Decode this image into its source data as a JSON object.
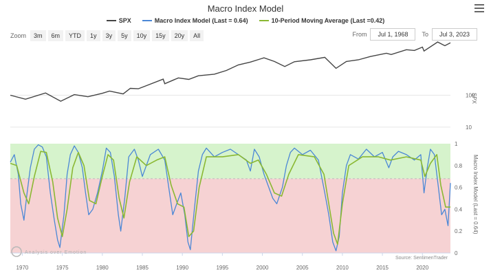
{
  "title": "Macro Index Model",
  "legend": [
    {
      "label": "SPX",
      "color": "#444444"
    },
    {
      "label": "Macro Index Model (Last = 0.64)",
      "color": "#4a87d6"
    },
    {
      "label": "10-Period Moving Average (Last =0.42)",
      "color": "#8ab832"
    }
  ],
  "zoom": {
    "label": "Zoom",
    "buttons": [
      "3m",
      "6m",
      "YTD",
      "1y",
      "3y",
      "5y",
      "10y",
      "15y",
      "20y",
      "All"
    ]
  },
  "range": {
    "from_label": "From",
    "from_value": "Jul 1, 1968",
    "to_label": "To",
    "to_value": "Jul 3, 2023"
  },
  "credit": "Source: SentimenTrader",
  "watermark": "Analysis over Emotion",
  "colors": {
    "green_zone": "#d6f3cc",
    "red_zone": "#f6d2d3",
    "threshold_line": "#bbbbbb"
  },
  "chart_data": [
    {
      "type": "line",
      "name_on_chart": "SPX",
      "y_scale": "log",
      "ylim": [
        7,
        4500
      ],
      "xlim": [
        1968.5,
        2023.5
      ],
      "y_ticks": [
        "100",
        "10"
      ],
      "ylabel": "SPX",
      "series": [
        {
          "name": "SPX",
          "x": [
            1968.5,
            1970.4,
            1972.9,
            1974.8,
            1976.5,
            1978.2,
            1980.0,
            1980.9,
            1982.6,
            1983.5,
            1984.5,
            1985.5,
            1987.6,
            1987.8,
            1989.5,
            1990.8,
            1992.0,
            1994.0,
            1995.5,
            1997.0,
            1998.5,
            2000.2,
            2001.5,
            2002.8,
            2004.0,
            2006.0,
            2007.8,
            2009.2,
            2010.5,
            2012.0,
            2013.5,
            2015.5,
            2016.1,
            2018.0,
            2019.0,
            2020.0,
            2020.2,
            2021.9,
            2022.8,
            2023.5
          ],
          "values": [
            100,
            75,
            118,
            65,
            105,
            90,
            115,
            135,
            110,
            165,
            160,
            200,
            320,
            230,
            350,
            315,
            410,
            460,
            600,
            900,
            1100,
            1500,
            1150,
            800,
            1130,
            1300,
            1550,
            700,
            1150,
            1300,
            1650,
            2080,
            1900,
            2700,
            2550,
            3250,
            2450,
            4700,
            3600,
            4450
          ]
        }
      ]
    },
    {
      "type": "line",
      "xlim": [
        1968.5,
        2023.5
      ],
      "ylim": [
        0,
        1
      ],
      "y_ticks": [
        "0",
        "0.2",
        "0.4",
        "0.6",
        "0.8",
        "1"
      ],
      "x_ticks": [
        "1970",
        "1975",
        "1980",
        "1985",
        "1990",
        "1995",
        "2000",
        "2005",
        "2010",
        "2015",
        "2020"
      ],
      "ylabel": "Macro Index Model (Last = 0.64)",
      "zones": {
        "green": [
          0.68,
          1.0
        ],
        "red": [
          0,
          0.68
        ],
        "threshold": 0.68
      },
      "series": [
        {
          "name": "Macro Index Model (Last = 0.64)",
          "x": [
            1968.5,
            1969.0,
            1969.5,
            1969.8,
            1970.2,
            1970.6,
            1971.0,
            1971.5,
            1972.0,
            1972.5,
            1973.0,
            1973.5,
            1974.0,
            1974.4,
            1974.7,
            1975.2,
            1975.6,
            1976.0,
            1976.5,
            1977.0,
            1977.5,
            1977.9,
            1978.3,
            1978.8,
            1979.4,
            1980.0,
            1980.5,
            1981.0,
            1981.5,
            1982.0,
            1982.3,
            1982.8,
            1983.3,
            1984.0,
            1984.5,
            1985.0,
            1986.0,
            1987.0,
            1987.8,
            1988.3,
            1988.8,
            1989.3,
            1989.8,
            1990.3,
            1990.7,
            1991.0,
            1991.5,
            1992.0,
            1992.5,
            1993.0,
            1994.0,
            1995.0,
            1996.0,
            1997.0,
            1998.0,
            1998.5,
            1999.0,
            1999.6,
            2000.2,
            2000.8,
            2001.3,
            2001.8,
            2002.5,
            2003.0,
            2003.5,
            2004.0,
            2005.0,
            2006.0,
            2007.0,
            2007.8,
            2008.3,
            2008.8,
            2009.2,
            2009.6,
            2010.0,
            2010.5,
            2011.0,
            2012.0,
            2013.0,
            2014.0,
            2015.0,
            2015.8,
            2016.3,
            2017.0,
            2018.0,
            2019.0,
            2019.8,
            2020.2,
            2020.6,
            2021.0,
            2021.5,
            2022.0,
            2022.4,
            2022.8,
            2023.2,
            2023.5
          ],
          "values": [
            0.83,
            0.9,
            0.72,
            0.45,
            0.3,
            0.55,
            0.78,
            0.95,
            0.99,
            0.97,
            0.88,
            0.55,
            0.3,
            0.12,
            0.05,
            0.35,
            0.72,
            0.9,
            0.98,
            0.92,
            0.78,
            0.55,
            0.35,
            0.4,
            0.55,
            0.75,
            0.96,
            0.92,
            0.7,
            0.35,
            0.2,
            0.5,
            0.88,
            0.95,
            0.85,
            0.7,
            0.9,
            0.95,
            0.85,
            0.6,
            0.35,
            0.45,
            0.55,
            0.35,
            0.1,
            0.03,
            0.4,
            0.75,
            0.9,
            0.96,
            0.88,
            0.92,
            0.95,
            0.9,
            0.85,
            0.75,
            0.95,
            0.88,
            0.72,
            0.6,
            0.5,
            0.45,
            0.6,
            0.8,
            0.92,
            0.96,
            0.9,
            0.94,
            0.85,
            0.55,
            0.35,
            0.1,
            0.02,
            0.15,
            0.55,
            0.8,
            0.9,
            0.86,
            0.95,
            0.88,
            0.92,
            0.78,
            0.88,
            0.93,
            0.9,
            0.85,
            0.9,
            0.55,
            0.78,
            0.95,
            0.9,
            0.6,
            0.35,
            0.4,
            0.25,
            0.64
          ]
        },
        {
          "name": "10-Period Moving Average (Last =0.42)",
          "x": [
            1968.5,
            1969.3,
            1970.2,
            1970.8,
            1971.5,
            1972.3,
            1973.0,
            1973.8,
            1974.4,
            1975.0,
            1975.6,
            1976.3,
            1977.0,
            1977.7,
            1978.4,
            1979.2,
            1980.0,
            1980.7,
            1981.4,
            1982.1,
            1982.7,
            1983.4,
            1984.3,
            1985.5,
            1986.8,
            1987.8,
            1988.6,
            1989.4,
            1990.2,
            1990.8,
            1991.4,
            1992.1,
            1993.0,
            1995.0,
            1997.0,
            1998.5,
            1999.5,
            2000.5,
            2001.5,
            2002.4,
            2003.3,
            2004.5,
            2006.5,
            2007.7,
            2008.3,
            2008.9,
            2009.4,
            2010.0,
            2010.8,
            2012.5,
            2014.5,
            2016.0,
            2018.0,
            2019.8,
            2020.3,
            2021.0,
            2021.8,
            2022.3,
            2022.9,
            2023.5
          ],
          "values": [
            0.82,
            0.8,
            0.55,
            0.45,
            0.7,
            0.93,
            0.92,
            0.65,
            0.32,
            0.15,
            0.4,
            0.78,
            0.92,
            0.8,
            0.48,
            0.45,
            0.7,
            0.9,
            0.85,
            0.5,
            0.32,
            0.65,
            0.88,
            0.8,
            0.85,
            0.88,
            0.62,
            0.45,
            0.42,
            0.15,
            0.2,
            0.6,
            0.88,
            0.88,
            0.9,
            0.82,
            0.85,
            0.72,
            0.55,
            0.52,
            0.72,
            0.9,
            0.88,
            0.72,
            0.45,
            0.18,
            0.08,
            0.45,
            0.8,
            0.88,
            0.88,
            0.85,
            0.88,
            0.85,
            0.7,
            0.82,
            0.9,
            0.62,
            0.42,
            0.42
          ]
        }
      ]
    }
  ]
}
